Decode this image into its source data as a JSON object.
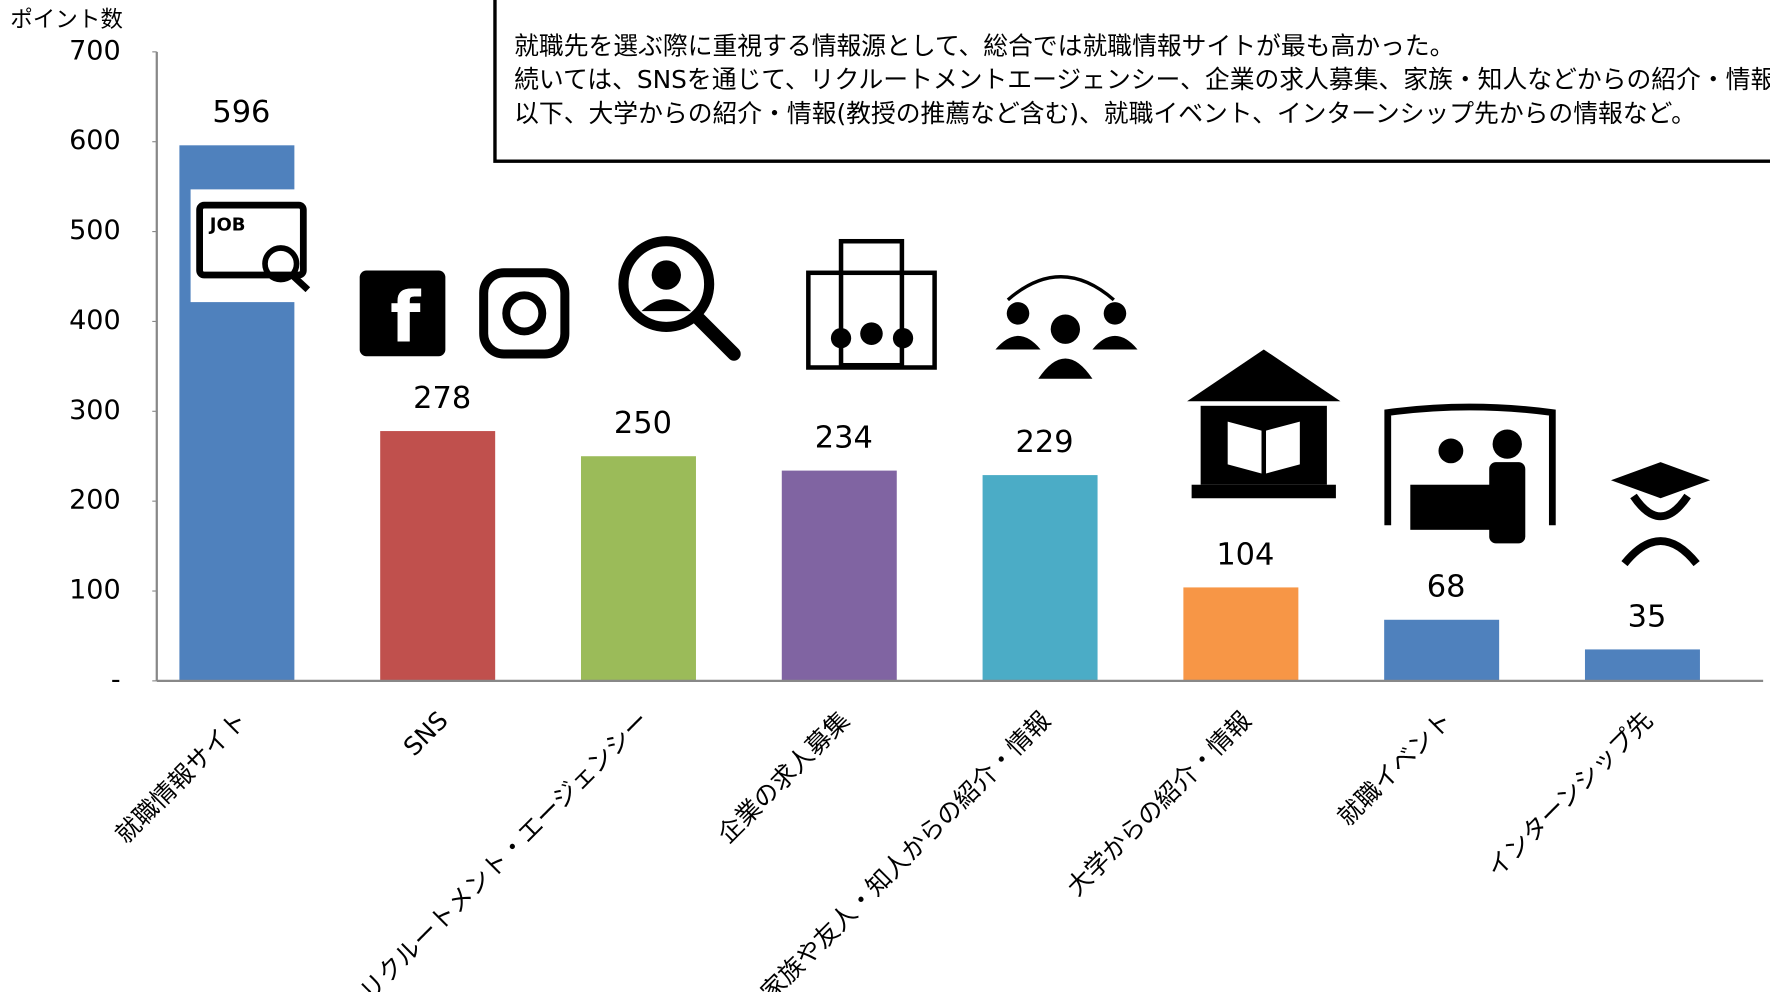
{
  "chart_data": {
    "type": "bar",
    "ylabel": "ポイント数",
    "annotation": [
      "就職先を選ぶ際に重視する情報源として、総合では就職情報サイトが最も高かった。",
      "続いては、SNSを通じて、リクルートメントエージェンシー、企業の求人募集、家族・知人などからの紹介・情報。",
      "以下、大学からの紹介・情報(教授の推薦など含む)、就職イベント、インターンシップ先からの情報など。"
    ],
    "categories": [
      "就職情報サイト",
      "SNS",
      "リクルートメント・エージェンシー",
      "企業の求人募集",
      "家族や友人・知人からの紹介・情報",
      "大学からの紹介・情報",
      "就職イベント",
      "インターンシップ先"
    ],
    "values": [
      596,
      278,
      250,
      234,
      229,
      104,
      68,
      35
    ],
    "colors": [
      "#4f81bd",
      "#c0504d",
      "#9bbb59",
      "#8064a2",
      "#4bacc6",
      "#f79646",
      "#4f81bd",
      "#4f81bd"
    ],
    "ylim": [
      0,
      700
    ],
    "yticks": [
      {
        "value": 0,
        "label": "-"
      },
      100,
      200,
      300,
      400,
      500,
      600,
      700
    ],
    "grid": false
  }
}
